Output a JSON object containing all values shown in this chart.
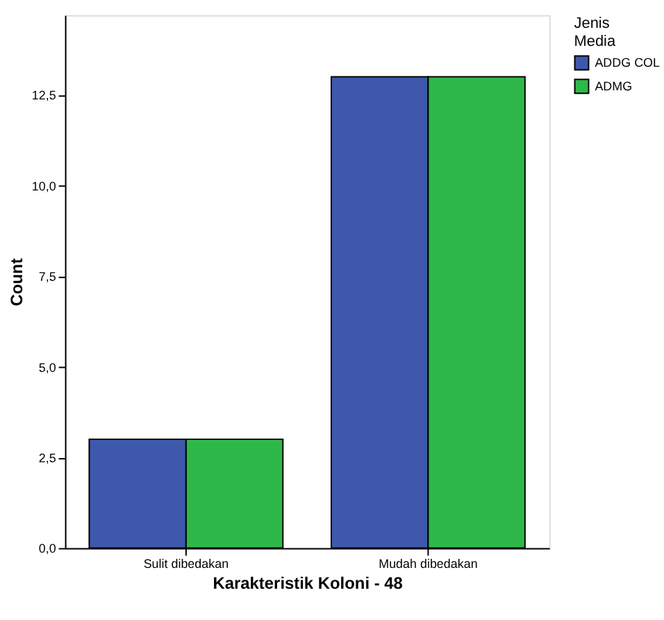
{
  "chart_data": {
    "type": "bar",
    "xlabel": "Karakteristik Koloni - 48",
    "ylabel": "Count",
    "legend_title": "Jenis Media",
    "categories": [
      "Sulit dibedakan",
      "Mudah dibedakan"
    ],
    "series": [
      {
        "name": "ADDG COL",
        "color": "#3e58ac",
        "values": [
          3,
          13
        ]
      },
      {
        "name": "ADMG",
        "color": "#2fb84a",
        "values": [
          3,
          13
        ]
      }
    ],
    "ylim": [
      0,
      14.7
    ],
    "yticks": [
      {
        "value": 0,
        "label": "0,0"
      },
      {
        "value": 2.5,
        "label": "2,5"
      },
      {
        "value": 5,
        "label": "5,0"
      },
      {
        "value": 7.5,
        "label": "7,5"
      },
      {
        "value": 10,
        "label": "10,0"
      },
      {
        "value": 12.5,
        "label": "12,5"
      }
    ],
    "grid": false,
    "legend": "top right"
  }
}
